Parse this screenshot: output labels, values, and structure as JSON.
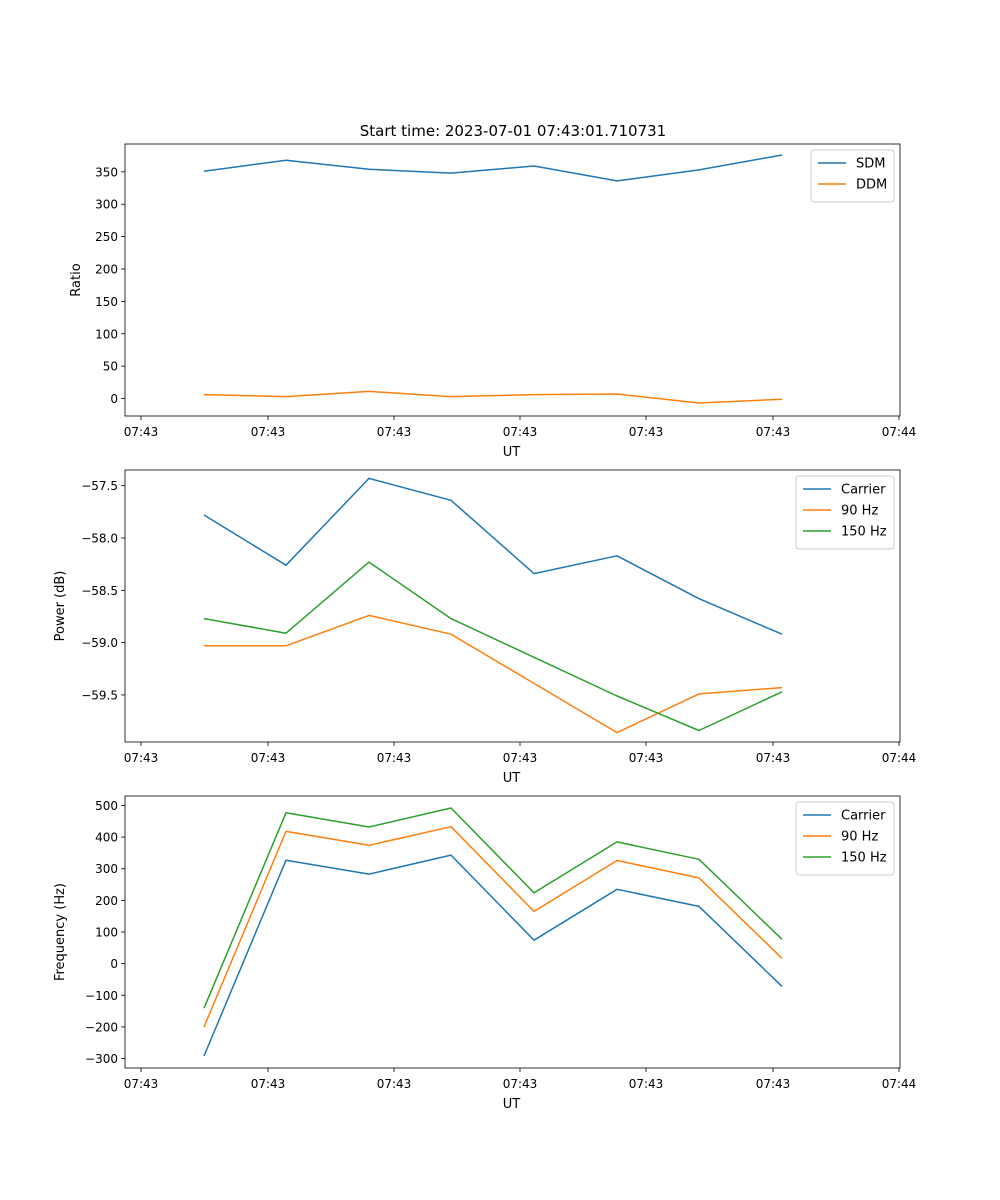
{
  "figure_title": "Start time: 2023-07-01 07:43:01.710731",
  "colors": {
    "c0": "#1f77b4",
    "c1": "#ff7f0e",
    "c2": "#2ca02c"
  },
  "chart_data": [
    {
      "type": "line",
      "title": "Start time: 2023-07-01 07:43:01.710731",
      "xlabel": "UT",
      "ylabel": "Ratio",
      "xtick_labels": [
        "07:43",
        "07:43",
        "07:43",
        "07:43",
        "07:43",
        "07:43",
        "07:44"
      ],
      "ytick_values": [
        0,
        50,
        100,
        150,
        200,
        250,
        300,
        350
      ],
      "ytick_labels": [
        "0",
        "50",
        "100",
        "150",
        "200",
        "250",
        "300",
        "350"
      ],
      "ylim": [
        -27,
        393
      ],
      "legend_position": "top-right",
      "series": [
        {
          "name": "SDM",
          "color": "#1f77b4",
          "values": [
            351,
            368,
            354,
            348,
            359,
            336,
            353,
            376
          ]
        },
        {
          "name": "DDM",
          "color": "#ff7f0e",
          "values": [
            6,
            3,
            11,
            3,
            6,
            7,
            -7,
            -1
          ]
        }
      ]
    },
    {
      "type": "line",
      "xlabel": "UT",
      "ylabel": "Power (dB)",
      "xtick_labels": [
        "07:43",
        "07:43",
        "07:43",
        "07:43",
        "07:43",
        "07:43",
        "07:44"
      ],
      "ytick_values": [
        -57.5,
        -58.0,
        -58.5,
        -59.0,
        -59.5
      ],
      "ytick_labels": [
        "−57.5",
        "−58.0",
        "−58.5",
        "−59.0",
        "−59.5"
      ],
      "ylim": [
        -59.95,
        -57.35
      ],
      "legend_position": "top-right",
      "series": [
        {
          "name": "Carrier",
          "color": "#1f77b4",
          "values": [
            -57.78,
            -58.26,
            -57.43,
            -57.64,
            -58.34,
            -58.17,
            -58.58,
            -58.92
          ]
        },
        {
          "name": "90 Hz",
          "color": "#ff7f0e",
          "values": [
            -59.03,
            -59.03,
            -58.74,
            -58.92,
            -59.39,
            -59.86,
            -59.49,
            -59.43
          ]
        },
        {
          "name": "150 Hz",
          "color": "#2ca02c",
          "values": [
            -58.77,
            -58.91,
            -58.23,
            -58.77,
            -59.14,
            -59.51,
            -59.84,
            -59.47
          ]
        }
      ]
    },
    {
      "type": "line",
      "xlabel": "UT",
      "ylabel": "Frequency (Hz)",
      "xtick_labels": [
        "07:43",
        "07:43",
        "07:43",
        "07:43",
        "07:43",
        "07:43",
        "07:44"
      ],
      "ytick_values": [
        -300,
        -200,
        -100,
        0,
        100,
        200,
        300,
        400,
        500
      ],
      "ytick_labels": [
        "−300",
        "−200",
        "−100",
        "0",
        "100",
        "200",
        "300",
        "400",
        "500"
      ],
      "ylim": [
        -330,
        530
      ],
      "legend_position": "top-right",
      "series": [
        {
          "name": "Carrier",
          "color": "#1f77b4",
          "values": [
            -292,
            327,
            283,
            343,
            74,
            235,
            181,
            -72
          ]
        },
        {
          "name": "90 Hz",
          "color": "#ff7f0e",
          "values": [
            -200,
            418,
            374,
            433,
            165,
            326,
            271,
            17
          ]
        },
        {
          "name": "150 Hz",
          "color": "#2ca02c",
          "values": [
            -141,
            477,
            432,
            492,
            224,
            385,
            330,
            77
          ]
        }
      ]
    }
  ]
}
